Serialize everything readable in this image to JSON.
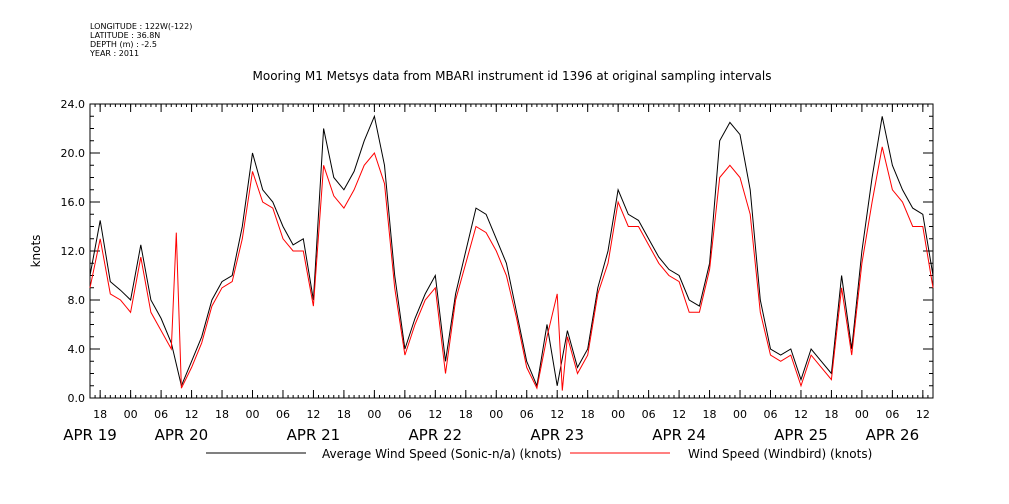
{
  "header": {
    "metadata": [
      "LONGITUDE : 122W(-122)",
      "LATITUDE : 36.8N",
      "DEPTH (m) : -2.5",
      "YEAR : 2011"
    ]
  },
  "chart_data": {
    "type": "line",
    "title": "Mooring M1 Metsys data from MBARI instrument id 1396 at original sampling intervals",
    "xlabel": "",
    "ylabel": "knots",
    "ylim": [
      0,
      24
    ],
    "xlim": [
      "2011-04-19T16:00",
      "2011-04-26T14:00"
    ],
    "y_ticks": [
      "0.0",
      "4.0",
      "8.0",
      "12.0",
      "16.0",
      "20.0",
      "24.0"
    ],
    "x_hour_ticks": [
      "18",
      "00",
      "06",
      "12",
      "18",
      "00",
      "06",
      "12",
      "18",
      "00",
      "06",
      "12",
      "18",
      "00",
      "06",
      "12",
      "18",
      "00",
      "06",
      "12",
      "18",
      "00",
      "06",
      "12",
      "18",
      "00",
      "06",
      "12"
    ],
    "x_day_labels": [
      "APR 19",
      "APR 20",
      "APR 21",
      "APR 22",
      "APR 23",
      "APR 24",
      "APR 25",
      "APR 26"
    ],
    "grid": false,
    "legend_position": "bottom",
    "series": [
      {
        "name": "Average Wind Speed (Sonic-n/a) (knots)",
        "color": "#000000",
        "x": [
          "2011-04-19T16:00",
          "2011-04-19T18:00",
          "2011-04-19T20:00",
          "2011-04-19T22:00",
          "2011-04-20T00:00",
          "2011-04-20T02:00",
          "2011-04-20T04:00",
          "2011-04-20T06:00",
          "2011-04-20T08:00",
          "2011-04-20T10:00",
          "2011-04-20T12:00",
          "2011-04-20T14:00",
          "2011-04-20T16:00",
          "2011-04-20T18:00",
          "2011-04-20T20:00",
          "2011-04-20T22:00",
          "2011-04-21T00:00",
          "2011-04-21T02:00",
          "2011-04-21T04:00",
          "2011-04-21T06:00",
          "2011-04-21T08:00",
          "2011-04-21T10:00",
          "2011-04-21T12:00",
          "2011-04-21T14:00",
          "2011-04-21T16:00",
          "2011-04-21T18:00",
          "2011-04-21T20:00",
          "2011-04-21T22:00",
          "2011-04-22T00:00",
          "2011-04-22T02:00",
          "2011-04-22T04:00",
          "2011-04-22T06:00",
          "2011-04-22T08:00",
          "2011-04-22T10:00",
          "2011-04-22T12:00",
          "2011-04-22T14:00",
          "2011-04-22T16:00",
          "2011-04-22T18:00",
          "2011-04-22T20:00",
          "2011-04-22T22:00",
          "2011-04-23T00:00",
          "2011-04-23T02:00",
          "2011-04-23T04:00",
          "2011-04-23T06:00",
          "2011-04-23T08:00",
          "2011-04-23T10:00",
          "2011-04-23T12:00",
          "2011-04-23T14:00",
          "2011-04-23T16:00",
          "2011-04-23T18:00",
          "2011-04-23T20:00",
          "2011-04-23T22:00",
          "2011-04-24T00:00",
          "2011-04-24T02:00",
          "2011-04-24T04:00",
          "2011-04-24T06:00",
          "2011-04-24T08:00",
          "2011-04-24T10:00",
          "2011-04-24T12:00",
          "2011-04-24T14:00",
          "2011-04-24T16:00",
          "2011-04-24T18:00",
          "2011-04-24T20:00",
          "2011-04-24T22:00",
          "2011-04-25T00:00",
          "2011-04-25T02:00",
          "2011-04-25T04:00",
          "2011-04-25T06:00",
          "2011-04-25T08:00",
          "2011-04-25T10:00",
          "2011-04-25T12:00",
          "2011-04-25T14:00",
          "2011-04-25T16:00",
          "2011-04-25T18:00",
          "2011-04-25T20:00",
          "2011-04-25T22:00",
          "2011-04-26T00:00",
          "2011-04-26T02:00",
          "2011-04-26T04:00",
          "2011-04-26T06:00",
          "2011-04-26T08:00",
          "2011-04-26T10:00",
          "2011-04-26T12:00",
          "2011-04-26T14:00"
        ],
        "values": [
          10.0,
          14.5,
          9.5,
          8.8,
          8.0,
          12.5,
          8.0,
          6.5,
          4.5,
          1.0,
          3.0,
          5.0,
          8.0,
          9.5,
          10.0,
          14.0,
          20.0,
          17.0,
          16.0,
          14.0,
          12.5,
          13.0,
          8.0,
          22.0,
          18.0,
          17.0,
          18.5,
          21.0,
          23.0,
          19.0,
          10.0,
          4.0,
          6.5,
          8.5,
          10.0,
          3.0,
          8.5,
          12.0,
          15.5,
          15.0,
          13.0,
          11.0,
          7.0,
          3.0,
          1.0,
          6.0,
          1.0,
          5.5,
          2.5,
          4.0,
          9.0,
          12.0,
          17.0,
          15.0,
          14.5,
          13.0,
          11.5,
          10.5,
          10.0,
          8.0,
          7.5,
          11.0,
          21.0,
          22.5,
          21.5,
          17.0,
          8.0,
          4.0,
          3.5,
          4.0,
          1.5,
          4.0,
          3.0,
          2.0,
          10.0,
          4.0,
          12.0,
          18.0,
          23.0,
          19.0,
          17.0,
          15.5,
          15.0,
          10.0
        ]
      },
      {
        "name": "Wind Speed (Windbird) (knots)",
        "color": "#ff0000",
        "x": [
          "2011-04-19T16:00",
          "2011-04-19T18:00",
          "2011-04-19T20:00",
          "2011-04-19T22:00",
          "2011-04-20T00:00",
          "2011-04-20T02:00",
          "2011-04-20T04:00",
          "2011-04-20T06:00",
          "2011-04-20T08:00",
          "2011-04-20T09:00",
          "2011-04-20T10:00",
          "2011-04-20T12:00",
          "2011-04-20T14:00",
          "2011-04-20T16:00",
          "2011-04-20T18:00",
          "2011-04-20T20:00",
          "2011-04-20T22:00",
          "2011-04-21T00:00",
          "2011-04-21T02:00",
          "2011-04-21T04:00",
          "2011-04-21T06:00",
          "2011-04-21T08:00",
          "2011-04-21T10:00",
          "2011-04-21T12:00",
          "2011-04-21T14:00",
          "2011-04-21T16:00",
          "2011-04-21T18:00",
          "2011-04-21T20:00",
          "2011-04-21T22:00",
          "2011-04-22T00:00",
          "2011-04-22T02:00",
          "2011-04-22T04:00",
          "2011-04-22T06:00",
          "2011-04-22T08:00",
          "2011-04-22T10:00",
          "2011-04-22T12:00",
          "2011-04-22T14:00",
          "2011-04-22T16:00",
          "2011-04-22T18:00",
          "2011-04-22T20:00",
          "2011-04-22T22:00",
          "2011-04-23T00:00",
          "2011-04-23T02:00",
          "2011-04-23T04:00",
          "2011-04-23T06:00",
          "2011-04-23T08:00",
          "2011-04-23T10:00",
          "2011-04-23T12:00",
          "2011-04-23T13:00",
          "2011-04-23T14:00",
          "2011-04-23T16:00",
          "2011-04-23T18:00",
          "2011-04-23T20:00",
          "2011-04-23T22:00",
          "2011-04-24T00:00",
          "2011-04-24T02:00",
          "2011-04-24T04:00",
          "2011-04-24T06:00",
          "2011-04-24T08:00",
          "2011-04-24T10:00",
          "2011-04-24T12:00",
          "2011-04-24T14:00",
          "2011-04-24T16:00",
          "2011-04-24T18:00",
          "2011-04-24T20:00",
          "2011-04-24T22:00",
          "2011-04-25T00:00",
          "2011-04-25T02:00",
          "2011-04-25T04:00",
          "2011-04-25T06:00",
          "2011-04-25T08:00",
          "2011-04-25T10:00",
          "2011-04-25T12:00",
          "2011-04-25T14:00",
          "2011-04-25T16:00",
          "2011-04-25T18:00",
          "2011-04-25T20:00",
          "2011-04-25T22:00",
          "2011-04-26T00:00",
          "2011-04-26T02:00",
          "2011-04-26T04:00",
          "2011-04-26T06:00",
          "2011-04-26T08:00",
          "2011-04-26T10:00",
          "2011-04-26T12:00",
          "2011-04-26T14:00"
        ],
        "values": [
          9.0,
          13.0,
          8.5,
          8.0,
          7.0,
          11.5,
          7.0,
          5.5,
          4.0,
          13.5,
          0.8,
          2.5,
          4.5,
          7.5,
          9.0,
          9.5,
          13.0,
          18.5,
          16.0,
          15.5,
          13.0,
          12.0,
          12.0,
          7.5,
          19.0,
          16.5,
          15.5,
          17.0,
          19.0,
          20.0,
          17.5,
          9.0,
          3.5,
          6.0,
          8.0,
          9.0,
          2.0,
          8.0,
          11.0,
          14.0,
          13.5,
          12.0,
          10.0,
          6.5,
          2.5,
          0.8,
          5.0,
          8.5,
          0.6,
          5.0,
          2.0,
          3.5,
          8.5,
          11.0,
          16.0,
          14.0,
          14.0,
          12.5,
          11.0,
          10.0,
          9.5,
          7.0,
          7.0,
          10.5,
          18.0,
          19.0,
          18.0,
          15.0,
          7.0,
          3.5,
          3.0,
          3.5,
          1.0,
          3.5,
          2.5,
          1.5,
          9.0,
          3.5,
          11.0,
          16.0,
          20.5,
          17.0,
          16.0,
          14.0,
          14.0,
          9.0
        ]
      }
    ]
  }
}
